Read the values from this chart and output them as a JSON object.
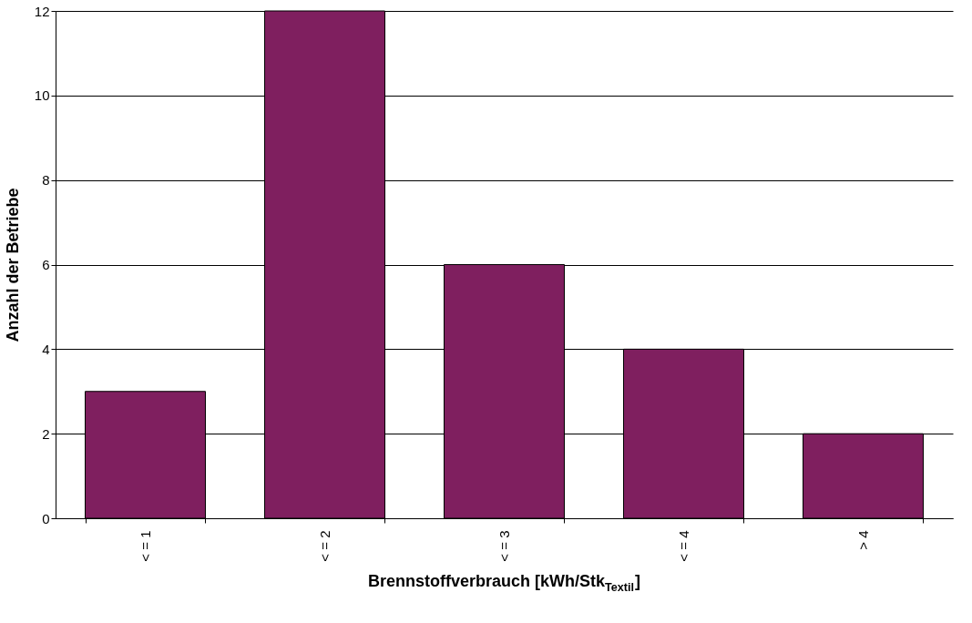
{
  "chart_data": {
    "type": "bar",
    "xlabel": "Brennstoffverbrauch [kWh/Stk$_{Textil}$]",
    "ylabel": "Anzahl der Betriebe",
    "categories": [
      "< = 1",
      "< = 2",
      "< = 3",
      "< = 4",
      "> 4"
    ],
    "values": [
      3,
      12,
      6,
      4,
      2
    ],
    "color": "#7f1f5f",
    "ylim": [
      0,
      12
    ],
    "yticks": [
      0,
      2,
      4,
      6,
      8,
      10,
      12
    ],
    "grid": "y"
  }
}
